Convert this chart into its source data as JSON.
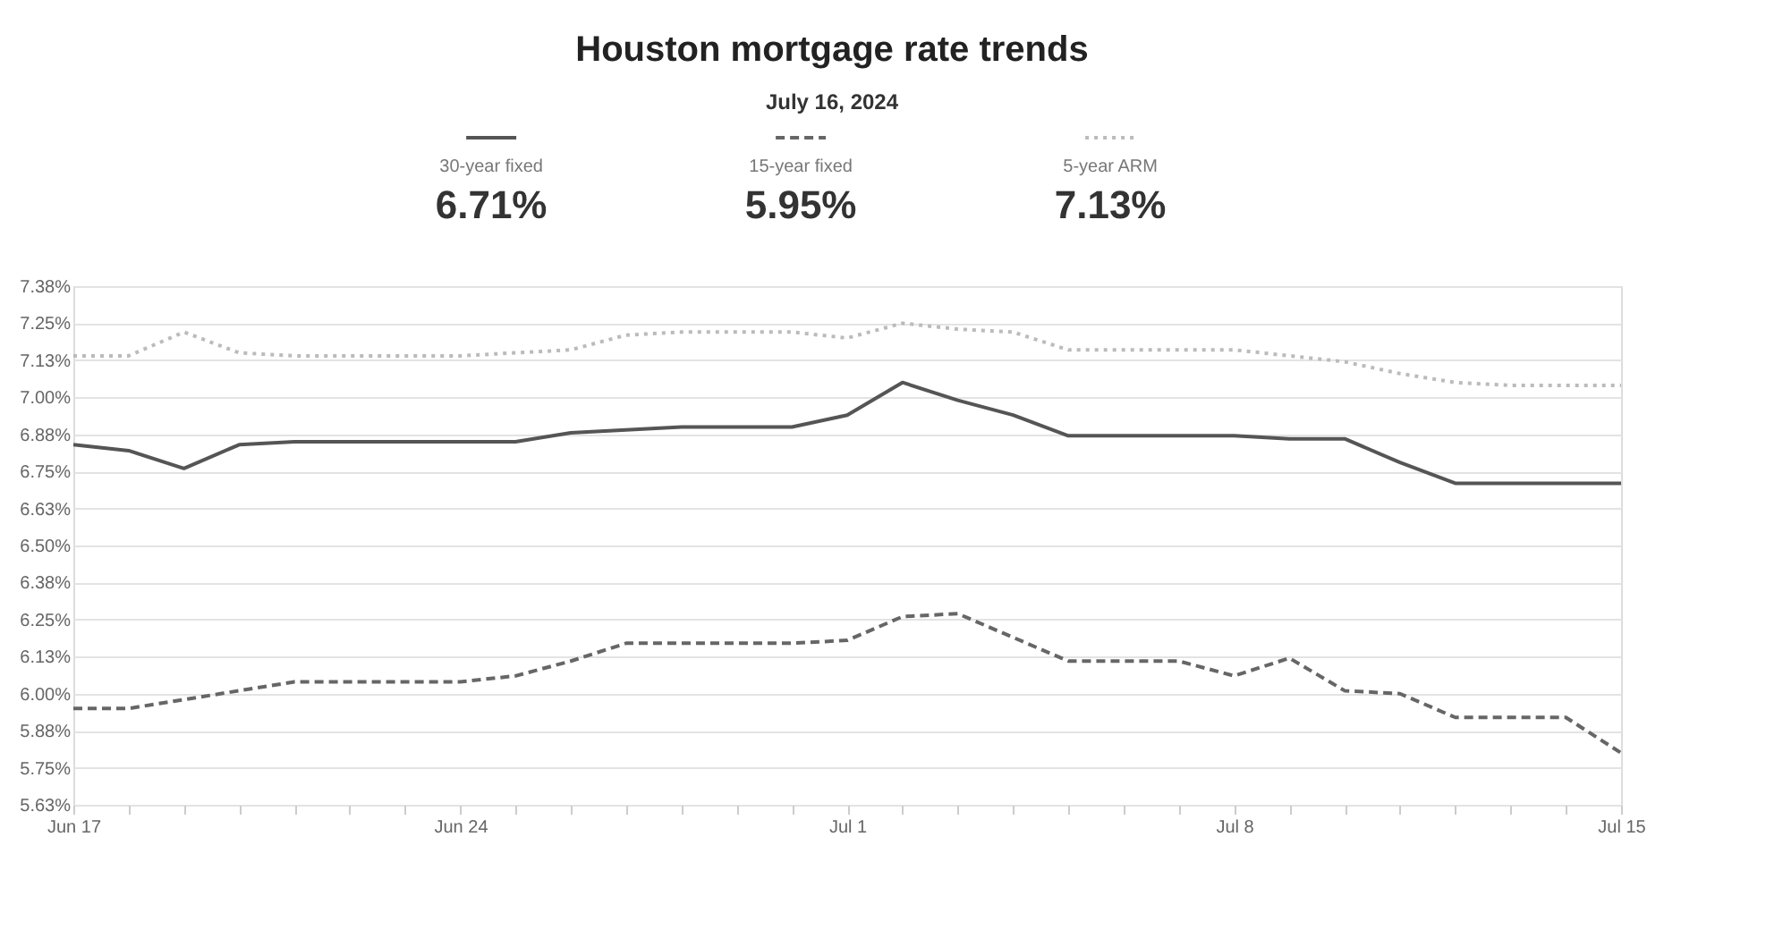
{
  "chart_data": {
    "type": "line",
    "title": "Houston mortgage rate trends",
    "subtitle": "July 16, 2024",
    "x": [
      "2024-06-17",
      "2024-06-18",
      "2024-06-19",
      "2024-06-20",
      "2024-06-21",
      "2024-06-22",
      "2024-06-23",
      "2024-06-24",
      "2024-06-25",
      "2024-06-26",
      "2024-06-27",
      "2024-06-28",
      "2024-06-29",
      "2024-06-30",
      "2024-07-01",
      "2024-07-02",
      "2024-07-03",
      "2024-07-04",
      "2024-07-05",
      "2024-07-06",
      "2024-07-07",
      "2024-07-08",
      "2024-07-09",
      "2024-07-10",
      "2024-07-11",
      "2024-07-12",
      "2024-07-13",
      "2024-07-14",
      "2024-07-15"
    ],
    "series": [
      {
        "name": "30-year fixed",
        "color": "#555555",
        "line_style": "solid",
        "values": [
          6.84,
          6.82,
          6.76,
          6.84,
          6.85,
          6.85,
          6.85,
          6.85,
          6.85,
          6.88,
          6.89,
          6.9,
          6.9,
          6.9,
          6.94,
          7.05,
          6.99,
          6.94,
          6.87,
          6.87,
          6.87,
          6.87,
          6.86,
          6.86,
          6.78,
          6.71,
          6.71,
          6.71,
          6.71
        ]
      },
      {
        "name": "15-year fixed",
        "color": "#666666",
        "line_style": "dashed",
        "values": [
          5.95,
          5.95,
          5.98,
          6.01,
          6.04,
          6.04,
          6.04,
          6.04,
          6.06,
          6.11,
          6.17,
          6.17,
          6.17,
          6.17,
          6.18,
          6.26,
          6.27,
          6.19,
          6.11,
          6.11,
          6.11,
          6.06,
          6.12,
          6.01,
          6.0,
          5.92,
          5.92,
          5.92,
          5.8
        ]
      },
      {
        "name": "5-year ARM",
        "color": "#bbbbbb",
        "line_style": "dotted",
        "values": [
          7.14,
          7.14,
          7.22,
          7.15,
          7.14,
          7.14,
          7.14,
          7.14,
          7.15,
          7.16,
          7.21,
          7.22,
          7.22,
          7.22,
          7.2,
          7.25,
          7.23,
          7.22,
          7.16,
          7.16,
          7.16,
          7.16,
          7.14,
          7.12,
          7.08,
          7.05,
          7.04,
          7.04,
          7.04
        ]
      }
    ],
    "annotations": [
      "6.71%",
      "5.95%",
      "7.13%"
    ],
    "legend": "top",
    "grid": "y",
    "xlim": [
      "2024-06-17",
      "2024-07-15"
    ],
    "xticks": [
      {
        "value": "2024-06-17",
        "label": "Jun 17"
      },
      {
        "value": "2024-06-18",
        "label": null
      },
      {
        "value": "2024-06-19",
        "label": null
      },
      {
        "value": "2024-06-20",
        "label": null
      },
      {
        "value": "2024-06-21",
        "label": null
      },
      {
        "value": "2024-06-22",
        "label": null
      },
      {
        "value": "2024-06-23",
        "label": null
      },
      {
        "value": "2024-06-24",
        "label": "Jun 24"
      },
      {
        "value": "2024-06-25",
        "label": null
      },
      {
        "value": "2024-06-26",
        "label": null
      },
      {
        "value": "2024-06-27",
        "label": null
      },
      {
        "value": "2024-06-28",
        "label": null
      },
      {
        "value": "2024-06-29",
        "label": null
      },
      {
        "value": "2024-06-30",
        "label": null
      },
      {
        "value": "2024-07-01",
        "label": "Jul 1"
      },
      {
        "value": "2024-07-02",
        "label": null
      },
      {
        "value": "2024-07-03",
        "label": null
      },
      {
        "value": "2024-07-04",
        "label": null
      },
      {
        "value": "2024-07-05",
        "label": null
      },
      {
        "value": "2024-07-06",
        "label": null
      },
      {
        "value": "2024-07-07",
        "label": null
      },
      {
        "value": "2024-07-08",
        "label": "Jul 8"
      },
      {
        "value": "2024-07-09",
        "label": null
      },
      {
        "value": "2024-07-10",
        "label": null
      },
      {
        "value": "2024-07-11",
        "label": null
      },
      {
        "value": "2024-07-12",
        "label": null
      },
      {
        "value": "2024-07-13",
        "label": null
      },
      {
        "value": "2024-07-14",
        "label": null
      },
      {
        "value": "2024-07-15",
        "label": "Jul 15"
      }
    ],
    "ylim": [
      5.625,
      7.375
    ],
    "yticks": [
      {
        "value": 5.625,
        "label": "5.63%"
      },
      {
        "value": 5.75,
        "label": "5.75%"
      },
      {
        "value": 5.875,
        "label": "5.88%"
      },
      {
        "value": 6.0,
        "label": "6.00%"
      },
      {
        "value": 6.125,
        "label": "6.13%"
      },
      {
        "value": 6.25,
        "label": "6.25%"
      },
      {
        "value": 6.375,
        "label": "6.38%"
      },
      {
        "value": 6.5,
        "label": "6.50%"
      },
      {
        "value": 6.625,
        "label": "6.63%"
      },
      {
        "value": 6.75,
        "label": "6.75%"
      },
      {
        "value": 6.875,
        "label": "6.88%"
      },
      {
        "value": 7.0,
        "label": "7.00%"
      },
      {
        "value": 7.125,
        "label": "7.13%"
      },
      {
        "value": 7.25,
        "label": "7.25%"
      },
      {
        "value": 7.375,
        "label": "7.38%"
      }
    ]
  }
}
